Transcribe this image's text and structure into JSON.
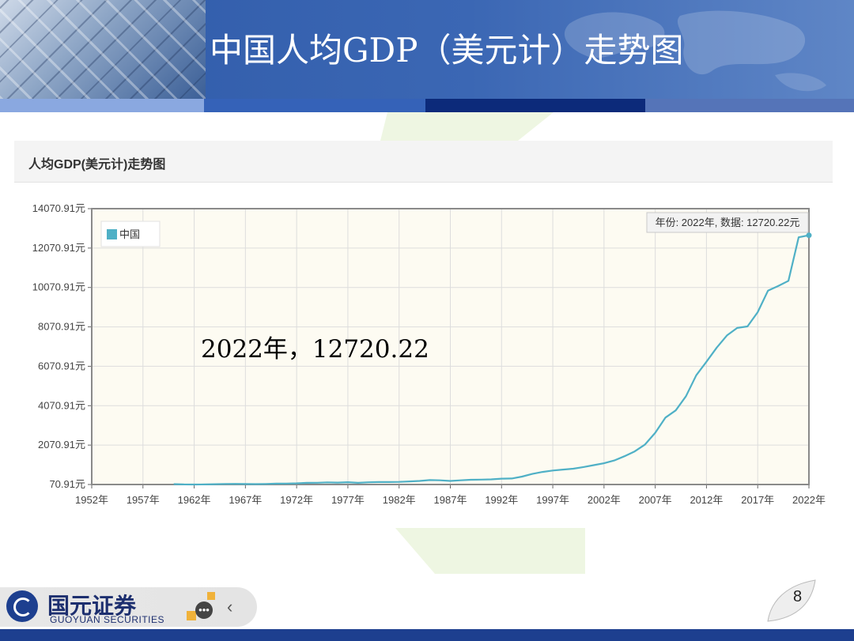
{
  "slide": {
    "title": "中国人均GDP（美元计）走势图",
    "page_number": "8"
  },
  "panel": {
    "title": "人均GDP(美元计)走势图"
  },
  "annotation": "2022年，12720.22",
  "logo": {
    "cn": "国元证券",
    "en": "GUOYUAN SECURITIES"
  },
  "colors": {
    "line": "#4fb0c6",
    "header": "#3562b8",
    "plot_bg": "#fdfbf2"
  },
  "chart_data": {
    "type": "line",
    "title": "",
    "xlabel": "",
    "ylabel": "",
    "legend": [
      "中国"
    ],
    "legend_position": "top-left",
    "grid": true,
    "x_ticks": [
      "1952年",
      "1957年",
      "1962年",
      "1967年",
      "1972年",
      "1977年",
      "1982年",
      "1987年",
      "1992年",
      "1997年",
      "2002年",
      "2007年",
      "2012年",
      "2017年",
      "2022年"
    ],
    "y_ticks": [
      "70.91元",
      "2070.91元",
      "4070.91元",
      "6070.91元",
      "8070.91元",
      "10070.91元",
      "12070.91元",
      "14070.91元"
    ],
    "xlim": [
      1952,
      2022
    ],
    "ylim": [
      70.91,
      14070.91
    ],
    "tooltip": "年份: 2022年, 数据: 12720.22元",
    "series": [
      {
        "name": "中国",
        "x": [
          1960,
          1961,
          1962,
          1963,
          1964,
          1965,
          1966,
          1967,
          1968,
          1969,
          1970,
          1971,
          1972,
          1973,
          1974,
          1975,
          1976,
          1977,
          1978,
          1979,
          1980,
          1981,
          1982,
          1983,
          1984,
          1985,
          1986,
          1987,
          1988,
          1989,
          1990,
          1991,
          1992,
          1993,
          1994,
          1995,
          1996,
          1997,
          1998,
          1999,
          2000,
          2001,
          2002,
          2003,
          2004,
          2005,
          2006,
          2007,
          2008,
          2009,
          2010,
          2011,
          2012,
          2013,
          2014,
          2015,
          2016,
          2017,
          2018,
          2019,
          2020,
          2021,
          2022
        ],
        "values": [
          89.52,
          75.81,
          70.91,
          74.31,
          85.5,
          98.49,
          104.32,
          96.59,
          91.47,
          100.13,
          113.16,
          118.65,
          131.88,
          157.09,
          160.14,
          178.34,
          165.41,
          185.42,
          156.4,
          183.98,
          194.8,
          197.07,
          203.33,
          225.45,
          250.71,
          294.46,
          281.93,
          251.81,
          283.54,
          310.88,
          317.88,
          333.14,
          366.46,
          377.39,
          473.49,
          609.66,
          709.41,
          781.74,
          828.58,
          873.29,
          959.37,
          1053.11,
          1148.51,
          1288.64,
          1508.67,
          1753.42,
          2099.23,
          2693.96,
          3468.3,
          3832.24,
          4550.45,
          5614.39,
          6300.58,
          7020.39,
          7636.07,
          8016.43,
          8094.39,
          8817.05,
          9905.34,
          10143.86,
          10408.72,
          12617.51,
          12720.22
        ]
      }
    ]
  }
}
